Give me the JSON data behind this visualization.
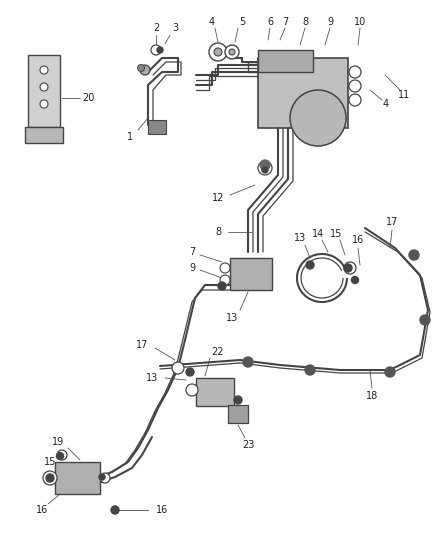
{
  "bg_color": "#ffffff",
  "line_color": "#444444",
  "label_color": "#222222",
  "figsize": [
    4.38,
    5.33
  ],
  "dpi": 100
}
